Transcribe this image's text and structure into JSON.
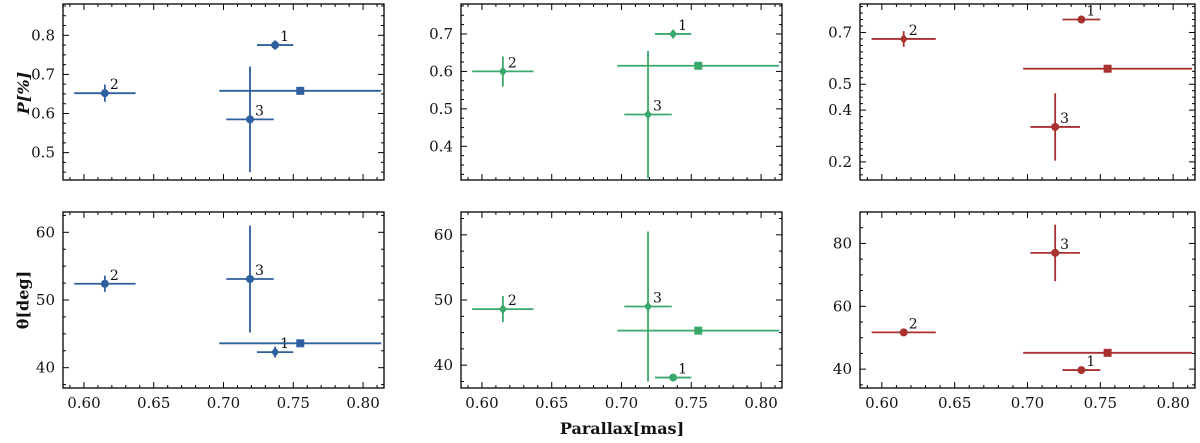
{
  "chart_data": {
    "type": "scatter",
    "shared_xlabel": "Parallax[mas]",
    "row_ylabels": {
      "pol": "P[%]",
      "angle": "θ[deg]"
    },
    "xlim": [
      0.585,
      0.815
    ],
    "xticks": [
      "0.60",
      "0.65",
      "0.70",
      "0.75",
      "0.80"
    ],
    "colors": {
      "blue": "#2e5f9e",
      "green": "#3aa86b",
      "red": "#a8302f"
    },
    "panels": [
      {
        "id": "blue-pol",
        "color": "blue",
        "ylim": [
          0.43,
          0.88
        ],
        "yticks": [
          "0.5",
          "0.6",
          "0.7",
          "0.8"
        ],
        "points": [
          {
            "label": "1",
            "marker": "circle",
            "x": 0.737,
            "xerr": 0.013,
            "y": 0.775,
            "yerr": 0.012
          },
          {
            "label": "2",
            "marker": "circle",
            "x": 0.615,
            "xerr": 0.022,
            "y": 0.652,
            "yerr": 0.022
          },
          {
            "label": "3",
            "marker": "circle",
            "x": 0.719,
            "xerr": 0.017,
            "y": 0.585,
            "yerr": 0.135
          },
          {
            "label": "",
            "marker": "square",
            "x": 0.755,
            "xerr": 0.058,
            "y": 0.658,
            "yerr": 0
          }
        ]
      },
      {
        "id": "green-pol",
        "color": "green",
        "ylim": [
          0.31,
          0.78
        ],
        "yticks": [
          "0.4",
          "0.5",
          "0.6",
          "0.7"
        ],
        "points": [
          {
            "label": "1",
            "marker": "diamond",
            "x": 0.737,
            "xerr": 0.013,
            "y": 0.7,
            "yerr": 0.01
          },
          {
            "label": "2",
            "marker": "diamond",
            "x": 0.615,
            "xerr": 0.022,
            "y": 0.6,
            "yerr": 0.04
          },
          {
            "label": "3",
            "marker": "diamond",
            "x": 0.719,
            "xerr": 0.017,
            "y": 0.485,
            "yerr": 0.17
          },
          {
            "label": "",
            "marker": "square",
            "x": 0.755,
            "xerr": 0.058,
            "y": 0.615,
            "yerr": 0
          }
        ]
      },
      {
        "id": "red-pol",
        "color": "red",
        "ylim": [
          0.13,
          0.81
        ],
        "yticks": [
          "0.2",
          "0.4",
          "0.5",
          "0.7"
        ],
        "points": [
          {
            "label": "1",
            "marker": "circle",
            "x": 0.737,
            "xerr": 0.013,
            "y": 0.75,
            "yerr": 0.01
          },
          {
            "label": "2",
            "marker": "diamond",
            "x": 0.615,
            "xerr": 0.022,
            "y": 0.675,
            "yerr": 0.03
          },
          {
            "label": "3",
            "marker": "circle",
            "x": 0.719,
            "xerr": 0.017,
            "y": 0.335,
            "yerr": 0.13
          },
          {
            "label": "",
            "marker": "square",
            "x": 0.755,
            "xerr": 0.058,
            "y": 0.56,
            "yerr": 0
          }
        ]
      },
      {
        "id": "blue-angle",
        "color": "blue",
        "ylim": [
          37.0,
          63.0
        ],
        "yticks": [
          "40",
          "50",
          "60"
        ],
        "points": [
          {
            "label": "1",
            "marker": "diamond",
            "x": 0.737,
            "xerr": 0.013,
            "y": 42.3,
            "yerr": 0.8
          },
          {
            "label": "2",
            "marker": "circle",
            "x": 0.615,
            "xerr": 0.022,
            "y": 52.4,
            "yerr": 1.2
          },
          {
            "label": "3",
            "marker": "circle",
            "x": 0.719,
            "xerr": 0.017,
            "y": 53.1,
            "yerr": 7.9
          },
          {
            "label": "",
            "marker": "square",
            "x": 0.755,
            "xerr": 0.058,
            "y": 43.6,
            "yerr": 0
          }
        ]
      },
      {
        "id": "green-angle",
        "color": "green",
        "ylim": [
          36.5,
          63.5
        ],
        "yticks": [
          "40",
          "50",
          "60"
        ],
        "points": [
          {
            "label": "1",
            "marker": "circle",
            "x": 0.737,
            "xerr": 0.013,
            "y": 38.1,
            "yerr": 0.3
          },
          {
            "label": "2",
            "marker": "diamond",
            "x": 0.615,
            "xerr": 0.022,
            "y": 48.6,
            "yerr": 2.0
          },
          {
            "label": "3",
            "marker": "diamond",
            "x": 0.719,
            "xerr": 0.017,
            "y": 49.0,
            "yerr": 11.5
          },
          {
            "label": "",
            "marker": "square",
            "x": 0.755,
            "xerr": 0.058,
            "y": 45.3,
            "yerr": 0
          }
        ]
      },
      {
        "id": "red-angle",
        "color": "red",
        "ylim": [
          34.0,
          90.0
        ],
        "yticks": [
          "40",
          "60",
          "80"
        ],
        "points": [
          {
            "label": "1",
            "marker": "circle",
            "x": 0.737,
            "xerr": 0.013,
            "y": 39.7,
            "yerr": 0.5
          },
          {
            "label": "2",
            "marker": "circle",
            "x": 0.615,
            "xerr": 0.022,
            "y": 51.7,
            "yerr": 1.0
          },
          {
            "label": "3",
            "marker": "circle",
            "x": 0.719,
            "xerr": 0.017,
            "y": 77.0,
            "yerr": 9.0
          },
          {
            "label": "",
            "marker": "square",
            "x": 0.755,
            "xerr": 0.058,
            "y": 45.2,
            "yerr": 0
          }
        ]
      }
    ]
  }
}
